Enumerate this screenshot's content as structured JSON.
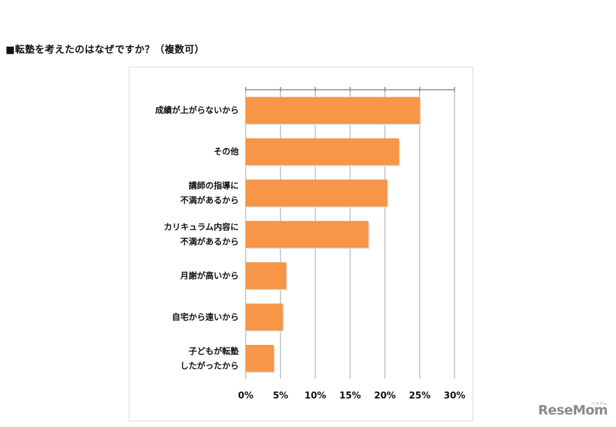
{
  "heading": "■転塾を考えたのはなぜですか？（複数可）",
  "chart_data": {
    "type": "bar",
    "orientation": "horizontal",
    "categories": [
      [
        "成績が上がらないから"
      ],
      [
        "その他"
      ],
      [
        "講師の指導に",
        "不満があるから"
      ],
      [
        "カリキュラム内容に",
        "不満があるから"
      ],
      [
        "月謝が高いから"
      ],
      [
        "自宅から遠いから"
      ],
      [
        "子どもが転塾",
        "したがったから"
      ]
    ],
    "values": [
      25,
      22,
      20.3,
      17.6,
      5.8,
      5.3,
      4.0
    ],
    "value_unit": "%",
    "xlim": [
      0,
      30
    ],
    "ticks": [
      "0%",
      "5%",
      "10%",
      "15%",
      "20%",
      "25%",
      "30%"
    ],
    "tick_values": [
      0,
      5,
      10,
      15,
      20,
      25,
      30
    ],
    "grid": "vertical",
    "bar_color": "#f79646",
    "grid_color": "#a0a0a0",
    "xlabel": "",
    "ylabel": "",
    "title": ""
  },
  "watermark": {
    "logo_text": "ReseMom",
    "kana_text": "リセマム"
  }
}
